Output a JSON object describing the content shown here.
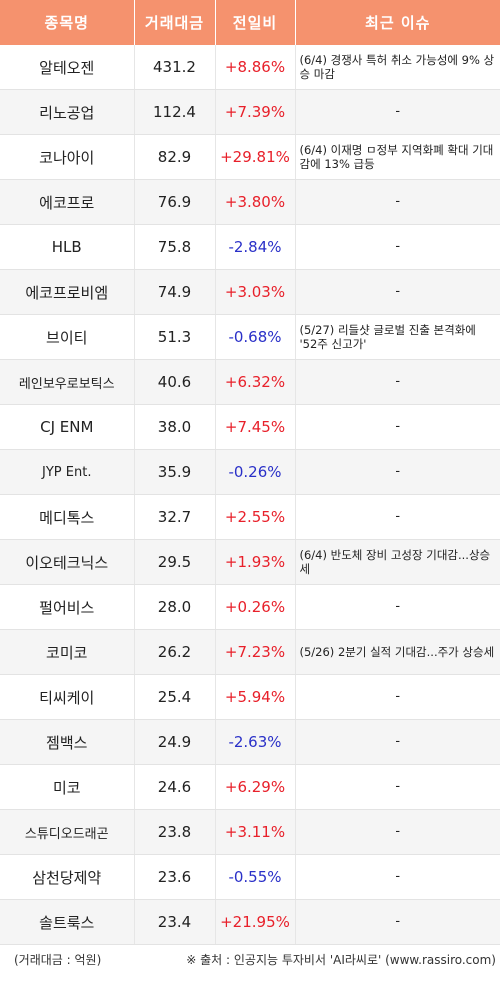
{
  "header": {
    "col_name": "종목명",
    "col_volume": "거래대금",
    "col_change": "전일비",
    "col_issue": "최근 이슈"
  },
  "colors": {
    "header_bg": "#f5926e",
    "up": "#e8202a",
    "down": "#2a30c8"
  },
  "rows": [
    {
      "name": "알테오젠",
      "volume": "431.2",
      "change": "+8.86%",
      "dir": "up",
      "issue": "(6/4) 경쟁사 특허 취소 가능성에 9% 상승 마감"
    },
    {
      "name": "리노공업",
      "volume": "112.4",
      "change": "+7.39%",
      "dir": "up",
      "issue": "-"
    },
    {
      "name": "코나아이",
      "volume": "82.9",
      "change": "+29.81%",
      "dir": "up",
      "issue": "(6/4) 이재명 ㅁ정부 지역화폐 확대 기대감에 13% 급등"
    },
    {
      "name": "에코프로",
      "volume": "76.9",
      "change": "+3.80%",
      "dir": "up",
      "issue": "-"
    },
    {
      "name": "HLB",
      "volume": "75.8",
      "change": "-2.84%",
      "dir": "down",
      "issue": "-"
    },
    {
      "name": "에코프로비엠",
      "volume": "74.9",
      "change": "+3.03%",
      "dir": "up",
      "issue": "-"
    },
    {
      "name": "브이티",
      "volume": "51.3",
      "change": "-0.68%",
      "dir": "down",
      "issue": "(5/27) 리들샷 글로벌 진출 본격화에 '52주 신고가'"
    },
    {
      "name": "레인보우로보틱스",
      "volume": "40.6",
      "change": "+6.32%",
      "dir": "up",
      "issue": "-"
    },
    {
      "name": "CJ ENM",
      "volume": "38.0",
      "change": "+7.45%",
      "dir": "up",
      "issue": "-"
    },
    {
      "name": "JYP Ent.",
      "volume": "35.9",
      "change": "-0.26%",
      "dir": "down",
      "issue": "-"
    },
    {
      "name": "메디톡스",
      "volume": "32.7",
      "change": "+2.55%",
      "dir": "up",
      "issue": "-"
    },
    {
      "name": "이오테크닉스",
      "volume": "29.5",
      "change": "+1.93%",
      "dir": "up",
      "issue": "(6/4) 반도체 장비 고성장 기대감...상승세"
    },
    {
      "name": "펄어비스",
      "volume": "28.0",
      "change": "+0.26%",
      "dir": "up",
      "issue": "-"
    },
    {
      "name": "코미코",
      "volume": "26.2",
      "change": "+7.23%",
      "dir": "up",
      "issue": "(5/26) 2분기 실적 기대감...주가 상승세"
    },
    {
      "name": "티씨케이",
      "volume": "25.4",
      "change": "+5.94%",
      "dir": "up",
      "issue": "-"
    },
    {
      "name": "젬백스",
      "volume": "24.9",
      "change": "-2.63%",
      "dir": "down",
      "issue": "-"
    },
    {
      "name": "미코",
      "volume": "24.6",
      "change": "+6.29%",
      "dir": "up",
      "issue": "-"
    },
    {
      "name": "스튜디오드래곤",
      "volume": "23.8",
      "change": "+3.11%",
      "dir": "up",
      "issue": "-"
    },
    {
      "name": "삼천당제약",
      "volume": "23.6",
      "change": "-0.55%",
      "dir": "down",
      "issue": "-"
    },
    {
      "name": "솔트룩스",
      "volume": "23.4",
      "change": "+21.95%",
      "dir": "up",
      "issue": "-"
    }
  ],
  "footer": {
    "unit": "(거래대금 : 억원)",
    "source": "※ 출처 : 인공지능 투자비서 'AI라씨로' (www.rassiro.com)"
  }
}
